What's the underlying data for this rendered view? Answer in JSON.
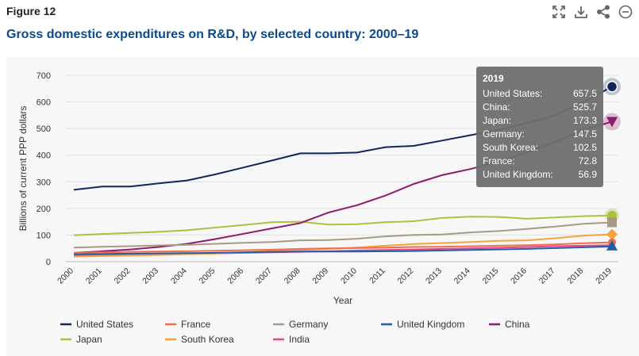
{
  "figure_label": "Figure 12",
  "title": "Gross domestic expenditures on R&D, by selected country: 2000–19",
  "toolbar": {
    "icons": [
      "expand-icon",
      "download-icon",
      "share-icon",
      "collapse-icon"
    ]
  },
  "tooltip": {
    "year": "2019",
    "rows": [
      {
        "label": "United States:",
        "value": "657.5"
      },
      {
        "label": "China:",
        "value": "525.7"
      },
      {
        "label": "Japan:",
        "value": "173.3"
      },
      {
        "label": "Germany:",
        "value": "147.5"
      },
      {
        "label": "South Korea:",
        "value": "102.5"
      },
      {
        "label": "France:",
        "value": "72.8"
      },
      {
        "label": "United Kingdom:",
        "value": "56.9"
      }
    ]
  },
  "chart_data": {
    "type": "line",
    "xlabel": "Year",
    "ylabel": "Billions of current PPP dollars",
    "ylim": [
      0,
      700
    ],
    "yticks": [
      0,
      100,
      200,
      300,
      400,
      500,
      600,
      700
    ],
    "grid": "horizontal",
    "legend_position": "bottom",
    "x": [
      "2000",
      "2001",
      "2002",
      "2003",
      "2004",
      "2005",
      "2006",
      "2007",
      "2008",
      "2009",
      "2010",
      "2011",
      "2012",
      "2013",
      "2014",
      "2015",
      "2016",
      "2017",
      "2018",
      "2019"
    ],
    "series": [
      {
        "name": "United States",
        "color": "#13265c",
        "values": [
          270,
          282,
          282,
          294,
          305,
          328,
          354,
          380,
          407,
          407,
          410,
          430,
          435,
          455,
          475,
          495,
          520,
          550,
          600,
          657.5
        ]
      },
      {
        "name": "France",
        "color": "#f26c4f",
        "values": [
          33,
          35,
          37,
          38,
          39,
          41,
          43,
          45,
          48,
          50,
          51,
          53,
          55,
          56,
          58,
          60,
          62,
          65,
          69,
          72.8
        ]
      },
      {
        "name": "Germany",
        "color": "#a89886",
        "values": [
          53,
          56,
          58,
          61,
          63,
          67,
          71,
          74,
          80,
          81,
          86,
          95,
          100,
          102,
          110,
          115,
          123,
          132,
          142,
          147.5
        ]
      },
      {
        "name": "United Kingdom",
        "color": "#1f5fa8",
        "values": [
          28,
          29,
          30,
          31,
          32,
          33,
          35,
          37,
          38,
          38,
          38,
          39,
          40,
          42,
          44,
          46,
          48,
          51,
          54,
          56.9
        ]
      },
      {
        "name": "China",
        "color": "#8e1a6d",
        "values": [
          33,
          39,
          46,
          55,
          67,
          85,
          105,
          125,
          145,
          185,
          212,
          248,
          292,
          325,
          348,
          375,
          410,
          450,
          495,
          525.7
        ]
      },
      {
        "name": "Japan",
        "color": "#a9c23f",
        "values": [
          99,
          104,
          108,
          112,
          118,
          128,
          138,
          148,
          150,
          139,
          141,
          148,
          152,
          164,
          169,
          168,
          161,
          166,
          171,
          173.3
        ]
      },
      {
        "name": "South Korea",
        "color": "#f7a23e",
        "values": [
          19,
          21,
          23,
          25,
          28,
          31,
          35,
          40,
          44,
          48,
          53,
          60,
          66,
          70,
          74,
          78,
          80,
          88,
          98,
          102.5
        ]
      },
      {
        "name": "India",
        "color": "#e8458b",
        "values": [
          23,
          24,
          26,
          27,
          29,
          31,
          33,
          35,
          37,
          39,
          42,
          44,
          46,
          48,
          50,
          52,
          55,
          58,
          60,
          62
        ]
      }
    ]
  }
}
